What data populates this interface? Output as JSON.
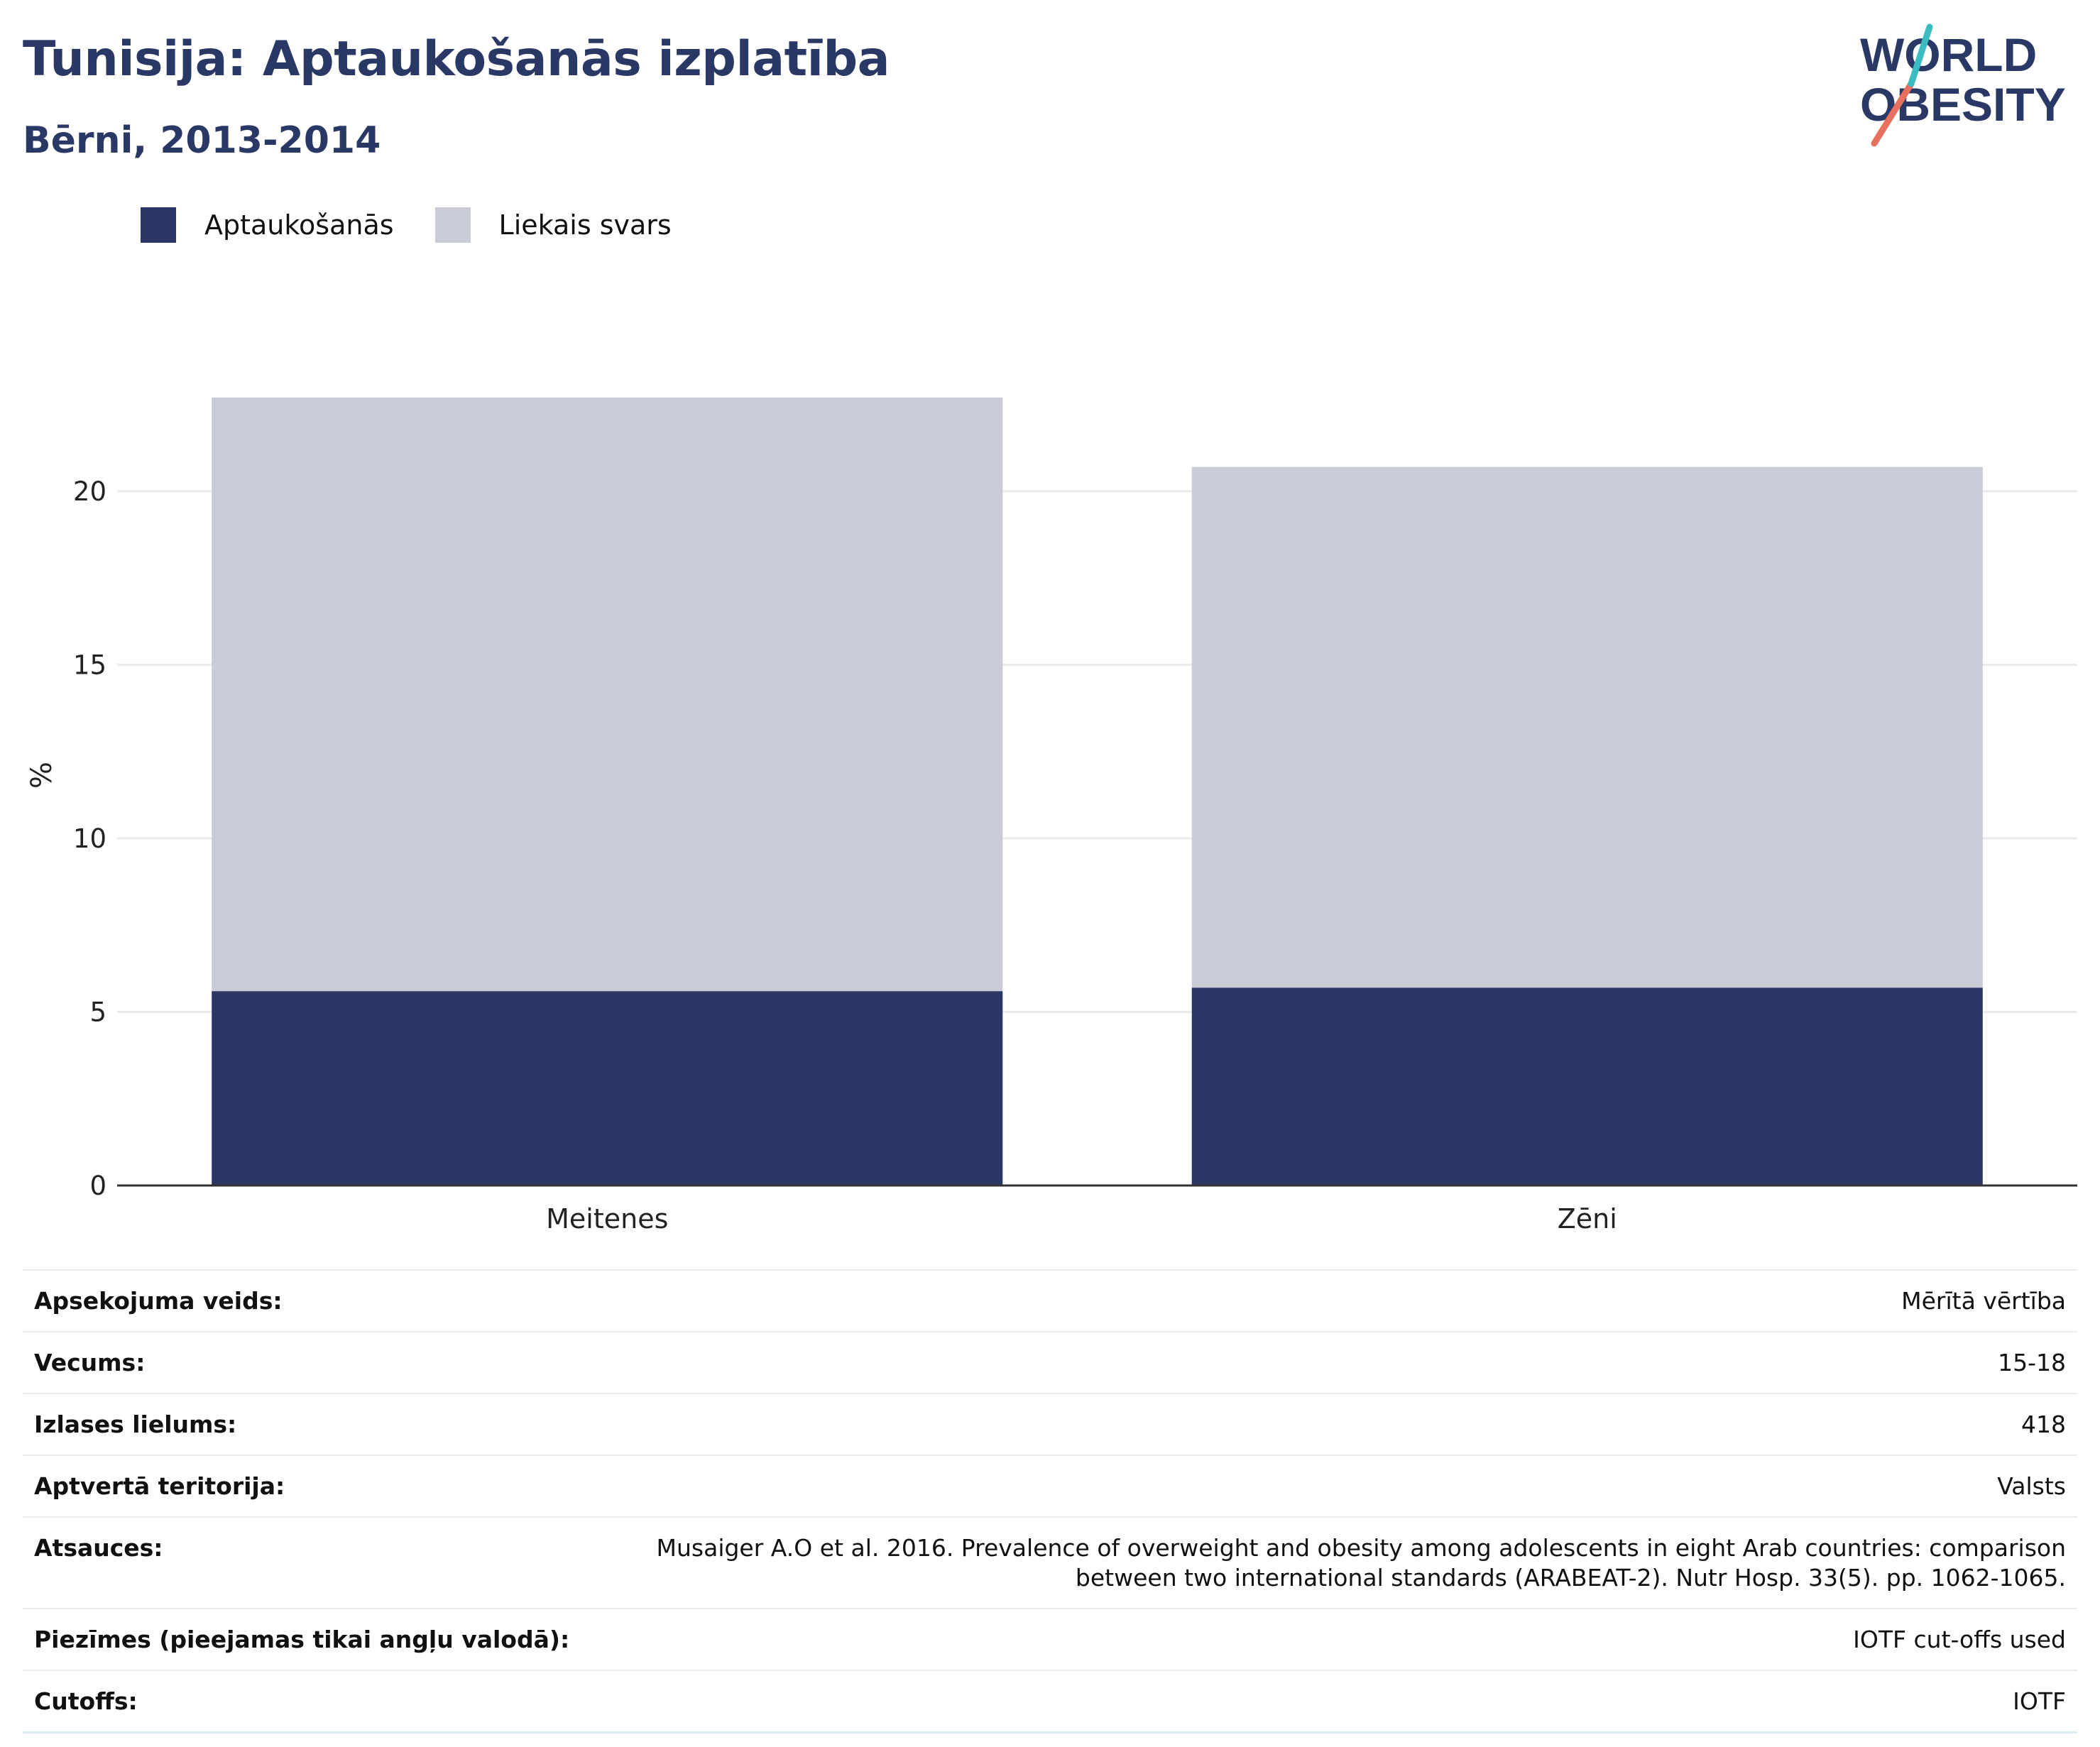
{
  "header": {
    "title": "Tunisija: Aptaukošanās izplatība",
    "subtitle": "Bērni, 2013-2014"
  },
  "logo": {
    "line1": "WORLD",
    "line2": "OBESITY",
    "text_color": "#2a3866",
    "slash_colors": [
      "#e8705f",
      "#3bbcc2"
    ]
  },
  "legend": [
    {
      "label": "Aptaukošanās",
      "color": "#2a3764"
    },
    {
      "label": "Liekais svars",
      "color": "#c9cbd7"
    }
  ],
  "chart_data": {
    "type": "bar",
    "stacked": true,
    "categories": [
      "Meitenes",
      "Zēni"
    ],
    "series": [
      {
        "name": "Aptaukošanās",
        "values": [
          5.6,
          5.7
        ],
        "color": "#2a3764"
      },
      {
        "name": "Liekais svars",
        "values": [
          17.1,
          15.0
        ],
        "color": "#c9cbd7"
      }
    ],
    "totals": [
      22.7,
      20.7
    ],
    "ylabel": "%",
    "xlabel": "",
    "ylim": [
      0,
      22.7
    ],
    "yticks": [
      0,
      5,
      10,
      15,
      20
    ],
    "grid": true,
    "legend_position": "top-left"
  },
  "meta": [
    {
      "label": "Apsekojuma veids:",
      "value": "Mērītā vērtība"
    },
    {
      "label": "Vecums:",
      "value": "15-18"
    },
    {
      "label": "Izlases lielums:",
      "value": "418"
    },
    {
      "label": "Aptvertā teritorija:",
      "value": "Valsts"
    },
    {
      "label": "Atsauces:",
      "value": "Musaiger A.O et al. 2016. Prevalence of overweight and obesity among adolescents in eight Arab countries: comparison between two international standards (ARABEAT-2). Nutr Hosp. 33(5). pp. 1062-1065."
    },
    {
      "label": "Piezīmes (pieejamas tikai angļu valodā):",
      "value": "IOTF cut-offs used"
    },
    {
      "label": "Cutoffs:",
      "value": "IOTF"
    }
  ]
}
